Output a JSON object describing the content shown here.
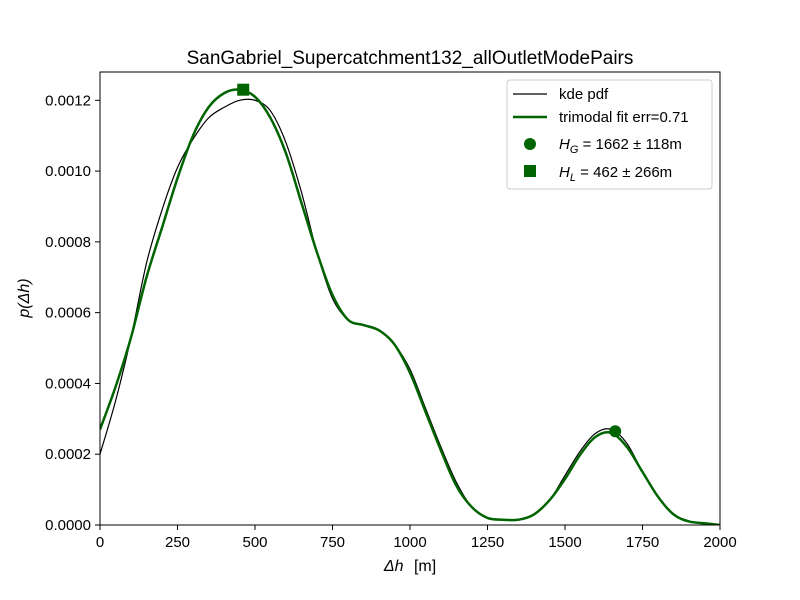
{
  "chart_data": {
    "type": "line",
    "title": "SanGabriel_Supercatchment132_allOutletModePairs",
    "xlabel": {
      "symbol": "Δh",
      "unit": "[m]"
    },
    "ylabel": {
      "prefix": "p(",
      "symbol": "Δh",
      "suffix": ")"
    },
    "xlim": [
      0,
      2000
    ],
    "ylim": [
      0,
      0.00128
    ],
    "xticks": [
      0,
      250,
      500,
      750,
      1000,
      1250,
      1500,
      1750,
      2000
    ],
    "xtick_labels": [
      "0",
      "250",
      "500",
      "750",
      "1000",
      "1250",
      "1500",
      "1750",
      "2000"
    ],
    "yticks": [
      0,
      0.0002,
      0.0004,
      0.0006,
      0.0008,
      0.001,
      0.0012
    ],
    "ytick_labels": [
      "0.0000",
      "0.0002",
      "0.0004",
      "0.0006",
      "0.0008",
      "0.0010",
      "0.0012"
    ],
    "grid": false,
    "legend_position": "top-right",
    "colors": {
      "kde": "#000000",
      "fit": "#006400"
    },
    "series": [
      {
        "name": "kde pdf",
        "x": [
          0,
          50,
          100,
          150,
          200,
          250,
          300,
          350,
          400,
          450,
          500,
          550,
          600,
          650,
          700,
          750,
          800,
          850,
          900,
          950,
          1000,
          1050,
          1100,
          1150,
          1200,
          1250,
          1300,
          1350,
          1400,
          1450,
          1500,
          1550,
          1600,
          1650,
          1700,
          1750,
          1800,
          1850,
          1900,
          1950,
          2000
        ],
        "y": [
          0.0002,
          0.00035,
          0.00053,
          0.00074,
          0.00089,
          0.00101,
          0.00109,
          0.00115,
          0.00118,
          0.0012,
          0.0012,
          0.00117,
          0.00108,
          0.00094,
          0.00077,
          0.00064,
          0.00058,
          0.000565,
          0.00055,
          0.00051,
          0.00044,
          0.00033,
          0.00022,
          0.00012,
          5e-05,
          2e-05,
          1.5e-05,
          1.5e-05,
          3e-05,
          7e-05,
          0.00014,
          0.00021,
          0.00026,
          0.00027,
          0.00023,
          0.00015,
          8e-05,
          3e-05,
          1e-05,
          5e-06,
          0.0
        ]
      },
      {
        "name": "trimodal fit err=0.71",
        "x": [
          0,
          50,
          100,
          150,
          200,
          250,
          300,
          350,
          400,
          450,
          500,
          550,
          600,
          650,
          700,
          750,
          800,
          850,
          900,
          950,
          1000,
          1050,
          1100,
          1150,
          1200,
          1250,
          1300,
          1350,
          1400,
          1450,
          1500,
          1550,
          1600,
          1650,
          1700,
          1750,
          1800,
          1850,
          1900,
          1950,
          2000
        ],
        "y": [
          0.00027,
          0.00039,
          0.00053,
          0.0007,
          0.00084,
          0.00098,
          0.0011,
          0.00118,
          0.00122,
          0.00123,
          0.00121,
          0.00115,
          0.00105,
          0.00091,
          0.00077,
          0.00065,
          0.00058,
          0.000565,
          0.00055,
          0.00051,
          0.00043,
          0.00032,
          0.00021,
          0.00011,
          5e-05,
          2e-05,
          1.5e-05,
          1.5e-05,
          3e-05,
          7e-05,
          0.00013,
          0.0002,
          0.00025,
          0.00026,
          0.00022,
          0.00015,
          8e-05,
          3e-05,
          1e-05,
          5e-06,
          0.0
        ]
      }
    ],
    "markers": [
      {
        "name": "H_G",
        "shape": "circle",
        "x": 1662,
        "y": 0.000265,
        "label": {
          "sym": "H",
          "sub": "G",
          "rest": " = 1662 ± 118m"
        }
      },
      {
        "name": "H_L",
        "shape": "square",
        "x": 462,
        "y": 0.00123,
        "label": {
          "sym": "H",
          "sub": "L",
          "rest": " = 462 ± 266m"
        }
      }
    ]
  }
}
